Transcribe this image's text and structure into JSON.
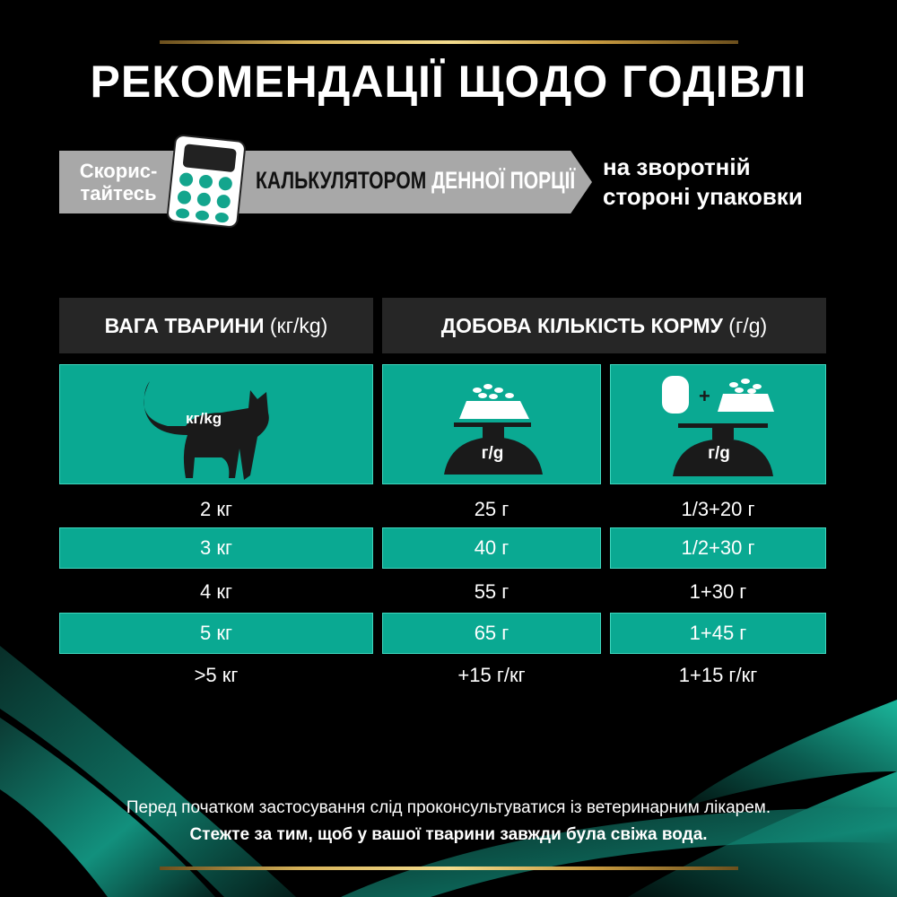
{
  "title": "РЕКОМЕНДАЦІЇ ЩОДО ГОДІВЛІ",
  "banner": {
    "use_label": "Скорис-\nтайтесь",
    "calc_dark": "КАЛЬКУЛЯТОРОМ",
    "calc_light": " ДЕННОЇ ПОРЦІЇ",
    "back_line1": "на зворотній",
    "back_line2": "стороні упаковки"
  },
  "table": {
    "header_weight": "ВАГА ТВАРИНИ",
    "header_weight_unit": " (кг/kg)",
    "header_amount": "ДОБОВА КІЛЬКІСТЬ КОРМУ",
    "header_amount_unit": " (г/g)",
    "icon_cat_label": "кг/kg",
    "icon_dry_label": "г/g",
    "icon_mix_label": "г/g",
    "rows": [
      {
        "weight": "2 кг",
        "dry": "25 г",
        "mix": "1/3+20 г"
      },
      {
        "weight": "3 кг",
        "dry": "40 г",
        "mix": "1/2+30 г"
      },
      {
        "weight": "4 кг",
        "dry": "55 г",
        "mix": "1+30 г"
      },
      {
        "weight": "5 кг",
        "dry": "65 г",
        "mix": "1+45 г"
      },
      {
        "weight": ">5 кг",
        "dry": "+15 г/кг",
        "mix": "1+15 г/кг"
      }
    ]
  },
  "note": "Перед початком застосування слід проконсультуватися із ветеринарним лікарем.",
  "note_bold": "Стежте за тим, щоб у вашої тварини завжди була свіжа вода.",
  "colors": {
    "teal": "#0aa992",
    "gold": "#d8b45a",
    "header": "#262626",
    "banner": "#a8a8a8"
  }
}
